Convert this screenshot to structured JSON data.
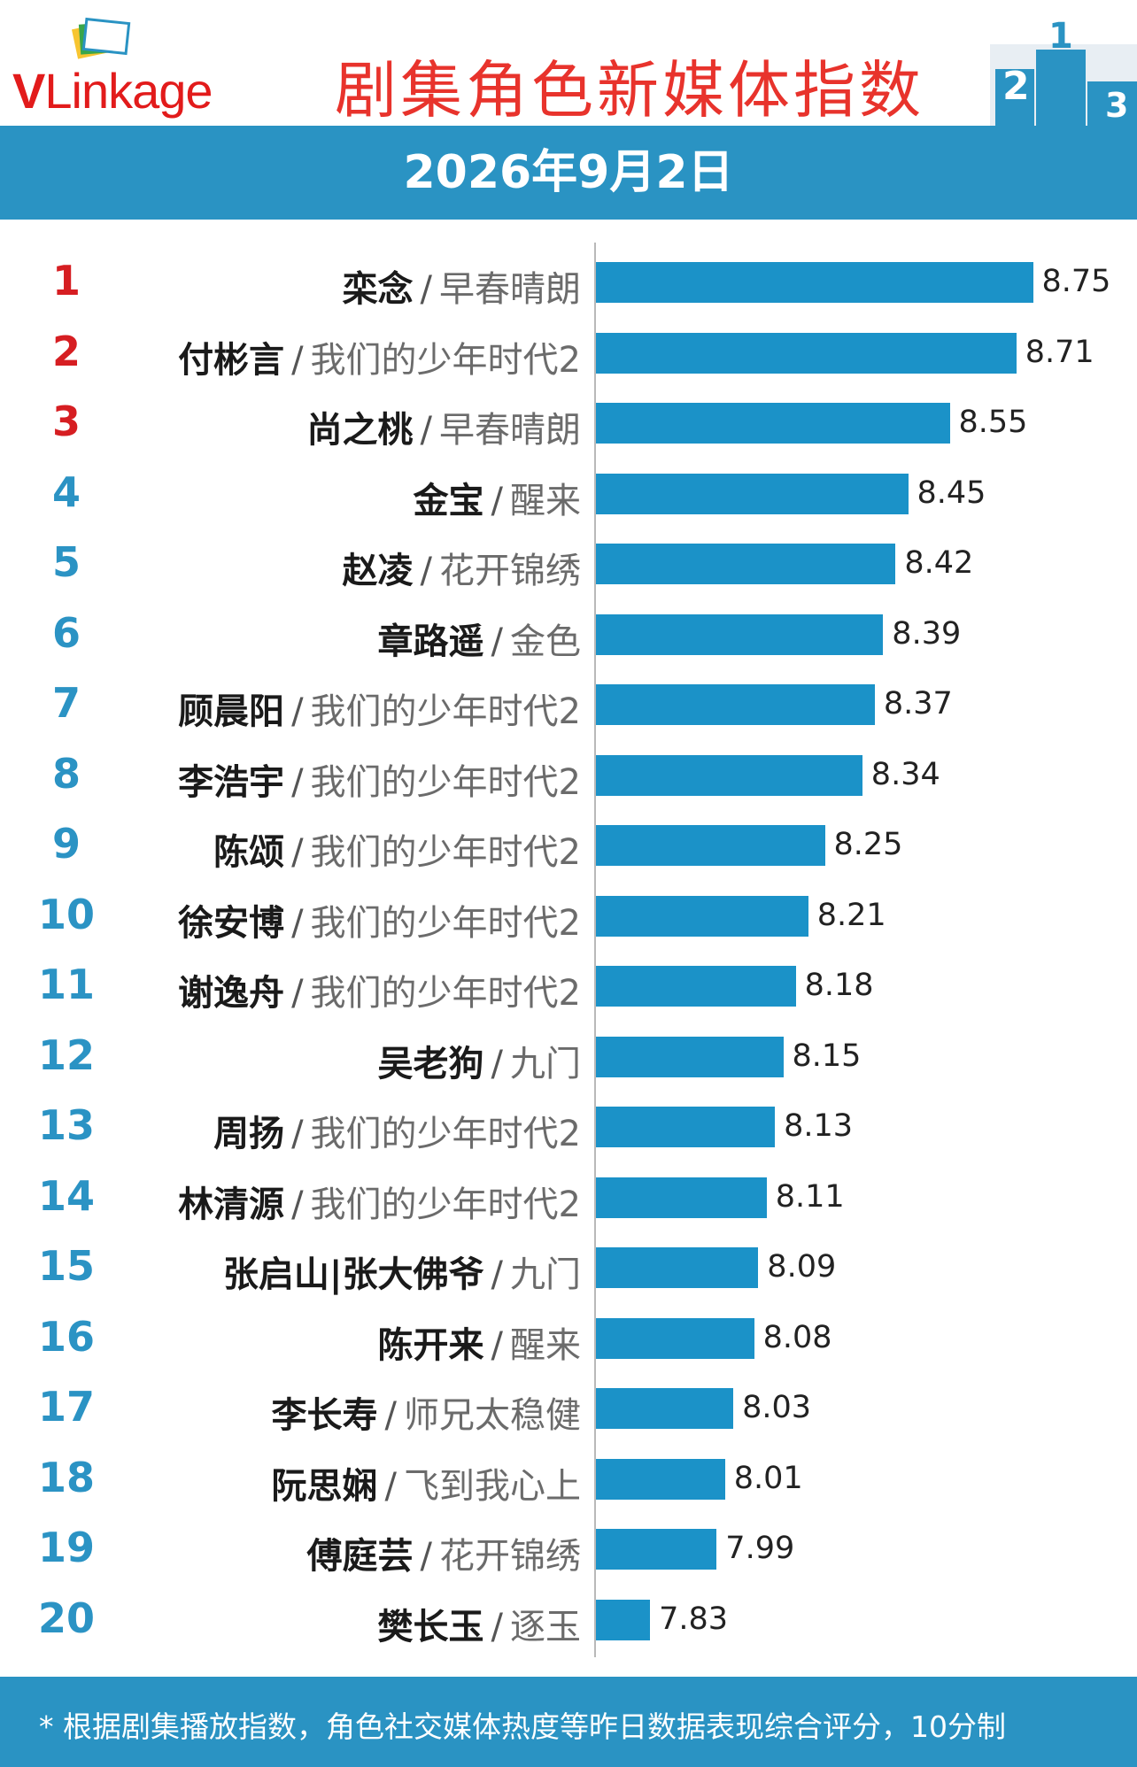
{
  "header": {
    "logo_v": "V",
    "logo_rest": "Linkage",
    "title": "剧集角色新媒体指数",
    "podium": [
      "2",
      "1",
      "3"
    ]
  },
  "date": "2026年9月2日",
  "colors": {
    "accent": "#2a93c3",
    "bar": "#1b92c8",
    "title_red": "#e8332c",
    "rank_top": "#d61e22",
    "rank_other": "#2b93c4"
  },
  "chart_data": {
    "type": "bar",
    "orientation": "horizontal",
    "title": "剧集角色新媒体指数",
    "categories": [
      "栾念 / 早春晴朗",
      "付彬言 / 我们的少年时代2",
      "尚之桃 / 早春晴朗",
      "金宝 / 醒来",
      "赵凌 / 花开锦绣",
      "章路遥 / 金色",
      "顾晨阳 / 我们的少年时代2",
      "李浩宇 / 我们的少年时代2",
      "陈颂 / 我们的少年时代2",
      "徐安博 / 我们的少年时代2",
      "谢逸舟 / 我们的少年时代2",
      "吴老狗 / 九门",
      "周扬 / 我们的少年时代2",
      "林清源 / 我们的少年时代2",
      "张启山|张大佛爷 / 九门",
      "陈开来 / 醒来",
      "李长寿 / 师兄太稳健",
      "阮思娴 / 飞到我心上",
      "傅庭芸 / 花开锦绣",
      "樊长玉 / 逐玉"
    ],
    "values": [
      8.75,
      8.71,
      8.55,
      8.45,
      8.42,
      8.39,
      8.37,
      8.34,
      8.25,
      8.21,
      8.18,
      8.15,
      8.13,
      8.11,
      8.09,
      8.08,
      8.03,
      8.01,
      7.99,
      7.83
    ],
    "xlim": [
      7.7,
      8.75
    ],
    "grid": false,
    "legend": "none"
  },
  "rows": [
    {
      "rank": "1",
      "name": "栾念",
      "show": "早春晴朗",
      "value": 8.75,
      "label": "8.75"
    },
    {
      "rank": "2",
      "name": "付彬言",
      "show": "我们的少年时代2",
      "value": 8.71,
      "label": "8.71"
    },
    {
      "rank": "3",
      "name": "尚之桃",
      "show": "早春晴朗",
      "value": 8.55,
      "label": "8.55"
    },
    {
      "rank": "4",
      "name": "金宝",
      "show": "醒来",
      "value": 8.45,
      "label": "8.45"
    },
    {
      "rank": "5",
      "name": "赵凌",
      "show": "花开锦绣",
      "value": 8.42,
      "label": "8.42"
    },
    {
      "rank": "6",
      "name": "章路遥",
      "show": "金色",
      "value": 8.39,
      "label": "8.39"
    },
    {
      "rank": "7",
      "name": "顾晨阳",
      "show": "我们的少年时代2",
      "value": 8.37,
      "label": "8.37"
    },
    {
      "rank": "8",
      "name": "李浩宇",
      "show": "我们的少年时代2",
      "value": 8.34,
      "label": "8.34"
    },
    {
      "rank": "9",
      "name": "陈颂",
      "show": "我们的少年时代2",
      "value": 8.25,
      "label": "8.25"
    },
    {
      "rank": "10",
      "name": "徐安博",
      "show": "我们的少年时代2",
      "value": 8.21,
      "label": "8.21"
    },
    {
      "rank": "11",
      "name": "谢逸舟",
      "show": "我们的少年时代2",
      "value": 8.18,
      "label": "8.18"
    },
    {
      "rank": "12",
      "name": "吴老狗",
      "show": "九门",
      "value": 8.15,
      "label": "8.15"
    },
    {
      "rank": "13",
      "name": "周扬",
      "show": "我们的少年时代2",
      "value": 8.13,
      "label": "8.13"
    },
    {
      "rank": "14",
      "name": "林清源",
      "show": "我们的少年时代2",
      "value": 8.11,
      "label": "8.11"
    },
    {
      "rank": "15",
      "name": "张启山|张大佛爷",
      "show": "九门",
      "value": 8.09,
      "label": "8.09"
    },
    {
      "rank": "16",
      "name": "陈开来",
      "show": "醒来",
      "value": 8.08,
      "label": "8.08"
    },
    {
      "rank": "17",
      "name": "李长寿",
      "show": "师兄太稳健",
      "value": 8.03,
      "label": "8.03"
    },
    {
      "rank": "18",
      "name": "阮思娴",
      "show": "飞到我心上",
      "value": 8.01,
      "label": "8.01"
    },
    {
      "rank": "19",
      "name": "傅庭芸",
      "show": "花开锦绣",
      "value": 7.99,
      "label": "7.99"
    },
    {
      "rank": "20",
      "name": "樊长玉",
      "show": "逐玉",
      "value": 7.83,
      "label": "7.83"
    }
  ],
  "separator": "/",
  "footer": {
    "note": "* 根据剧集播放指数，角色社交媒体热度等昨日数据表现综合评分，10分制"
  }
}
